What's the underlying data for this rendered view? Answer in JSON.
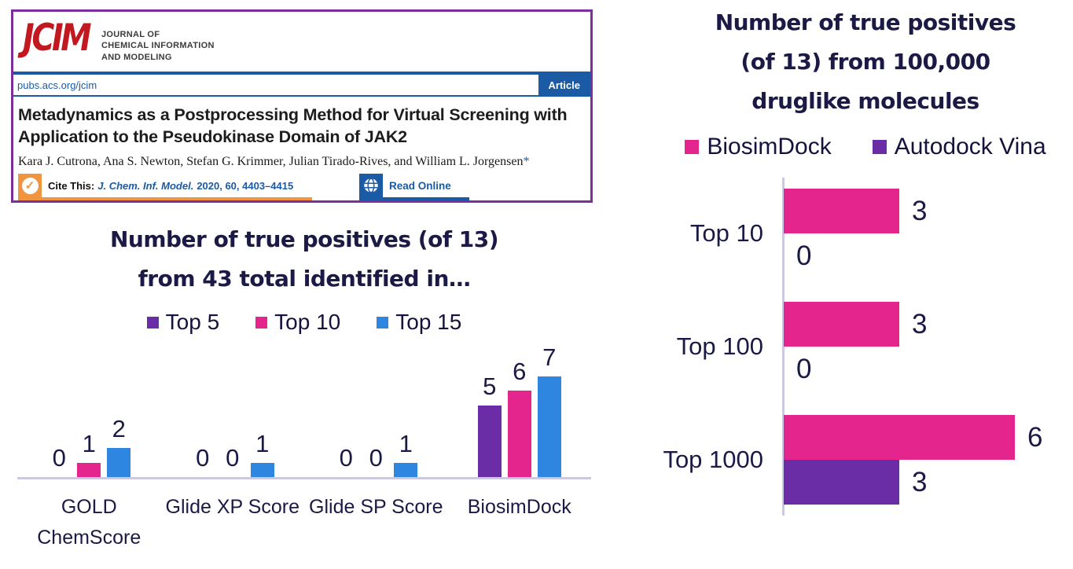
{
  "paper_card": {
    "logo_text": "JCIM",
    "journal_name_lines": [
      "JOURNAL OF",
      "CHEMICAL INFORMATION",
      "AND MODELING"
    ],
    "url": "pubs.acs.org/jcim",
    "article_badge": "Article",
    "title": "Metadynamics as a Postprocessing Method for Virtual Screening with Application to the Pseudokinase Domain of JAK2",
    "authors": "Kara J. Cutrona, Ana S. Newton, Stefan G. Krimmer, Julian Tirado-Rives, and William L. Jorgensen",
    "authors_mark": "*",
    "cite_this_label": "Cite This:",
    "citation_journal": "J. Chem. Inf. Model.",
    "citation_detail": "2020, 60, 4403–4415",
    "read_online_label": "Read Online",
    "colors": {
      "logo_red": "#C2181F",
      "acs_blue": "#1B5BA6",
      "cite_orange": "#F09440",
      "card_border_purple": "#7C2E9C"
    }
  },
  "icons": {
    "check_glyph": "✓"
  },
  "chart_data": [
    {
      "type": "bar",
      "title": "Number of true positives (of 13) from 43 total identified in…",
      "title_lines": [
        "Number of true positives (of 13)",
        "from 43 total identified in…"
      ],
      "categories": [
        "GOLD ChemScore",
        "Glide XP Score",
        "Glide SP Score",
        "BiosimDock"
      ],
      "series": [
        {
          "name": "Top 5",
          "color": "#6B2DA6",
          "values": [
            0,
            0,
            0,
            5
          ]
        },
        {
          "name": "Top 10",
          "color": "#E5258E",
          "values": [
            1,
            0,
            0,
            6
          ]
        },
        {
          "name": "Top 15",
          "color": "#2E86E0",
          "values": [
            2,
            1,
            1,
            7
          ]
        }
      ],
      "ylim": [
        0,
        7
      ],
      "grid": false,
      "data_labels": true,
      "legend_position": "top",
      "axis_color": "#CCC6EE",
      "text_color": "#1B1945"
    },
    {
      "type": "horizontal-bar",
      "title": "Number of true positives (of 13) from 100,000 druglike molecules",
      "title_lines": [
        "Number of true positives",
        "(of 13) from 100,000",
        "druglike molecules"
      ],
      "categories": [
        "Top 10",
        "Top 100",
        "Top 1000"
      ],
      "series": [
        {
          "name": "BiosimDock",
          "color": "#E5258E",
          "values": [
            3,
            3,
            6
          ]
        },
        {
          "name": "Autodock Vina",
          "color": "#6B2DA6",
          "values": [
            0,
            0,
            3
          ]
        }
      ],
      "xlim": [
        0,
        6
      ],
      "grid": false,
      "data_labels": true,
      "legend_position": "top",
      "axis_color": "#CCC6EE",
      "text_color": "#1B1945"
    }
  ]
}
